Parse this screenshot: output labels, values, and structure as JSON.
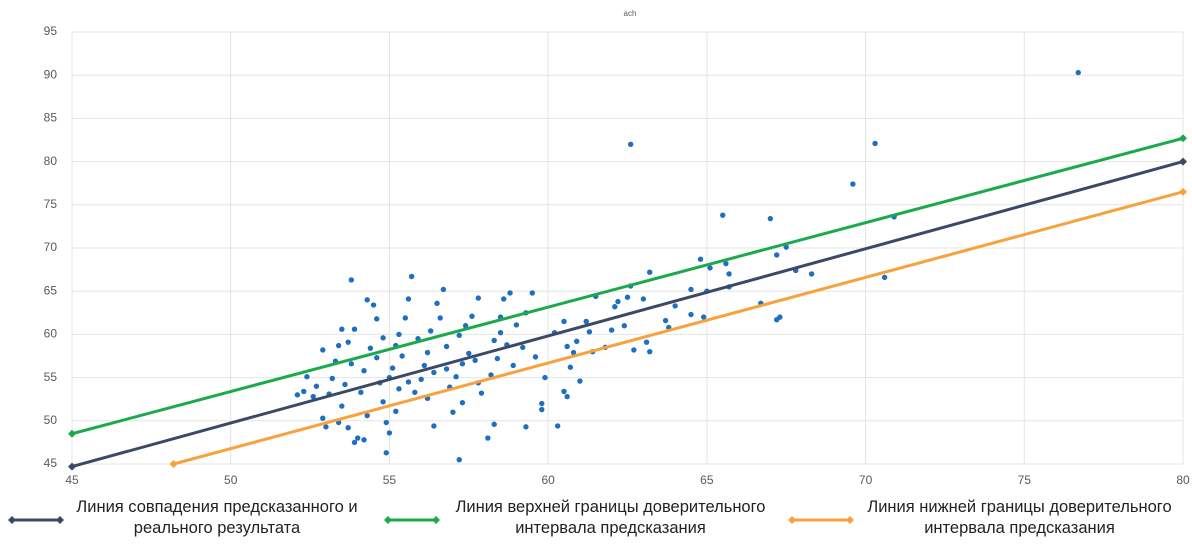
{
  "chart_data": {
    "type": "scatter",
    "title": "ach",
    "xlim": [
      45,
      80
    ],
    "xticks": [
      45,
      50,
      55,
      60,
      65,
      70,
      75,
      80
    ],
    "ylim": [
      45,
      95
    ],
    "yticks": [
      45,
      50,
      55,
      60,
      65,
      70,
      75,
      80,
      85,
      90,
      95
    ],
    "grid": true,
    "legend": "bottom",
    "series": [
      {
        "color": "#1f6fc0",
        "x": [
          76.7,
          70.3,
          62.6,
          69.6,
          70.9,
          65.5,
          67,
          70.6,
          67.5,
          67.2,
          67.3,
          67.2,
          66.7,
          68.3,
          67.8,
          65.7,
          65.6,
          65.1,
          64.8,
          65,
          65.7,
          64.5,
          64.9,
          64.5,
          64,
          63.7,
          63.8,
          63.2,
          63,
          62.6,
          62.5,
          62.2,
          62.1,
          62.4,
          62.7,
          63.1,
          63.2,
          62,
          61.5,
          61.3,
          61.4,
          61.8,
          61.2,
          60.9,
          60.6,
          60.8,
          61,
          60.7,
          60.5,
          60.6,
          60.2,
          60.5,
          60.3,
          59.8,
          59.3,
          59.8,
          59.2,
          59.6,
          59.5,
          59.3,
          59,
          58.8,
          58.6,
          58.5,
          58.3,
          58.4,
          58.5,
          58.2,
          58.1,
          58.3,
          57.8,
          57.8,
          57.6,
          57.4,
          57.2,
          57.5,
          57.3,
          57.1,
          57.2,
          57.3,
          57,
          56.9,
          56.8,
          56.6,
          56.7,
          56.5,
          56.3,
          56.2,
          56.1,
          56,
          56.2,
          56.4,
          55.8,
          55.7,
          55.6,
          55.5,
          55.3,
          55.2,
          55.4,
          55.1,
          55,
          55.3,
          55.2,
          55,
          54.9,
          54.9,
          54.7,
          54.6,
          54.8,
          54.6,
          54.5,
          54.3,
          54.4,
          54.2,
          54.1,
          54.3,
          54.2,
          54,
          53.8,
          53.9,
          53.7,
          53.8,
          53.6,
          53.5,
          53.7,
          53.9,
          53.5,
          53.4,
          53.3,
          53.2,
          53.1,
          53.4,
          52.9,
          52.7,
          52.6,
          52.4,
          52.3,
          52.1,
          52.9,
          53,
          56.8,
          57.7,
          55.9,
          58.9,
          59.9,
          56.4,
          55.6,
          54.8,
          57.9,
          58.7
        ],
        "values": [
          90.3,
          82.1,
          82,
          77.4,
          73.6,
          73.8,
          73.4,
          66.6,
          70.1,
          69.2,
          62,
          61.7,
          63.6,
          67,
          67.4,
          67,
          68.2,
          67.7,
          68.7,
          65,
          65.5,
          65.2,
          62,
          62.3,
          63.3,
          61.6,
          60.8,
          67.2,
          64.1,
          65.6,
          64.3,
          63.8,
          63.2,
          61,
          58.2,
          59.1,
          58,
          60.5,
          64.4,
          60.3,
          58,
          58.5,
          61.5,
          59.2,
          58.6,
          57.9,
          54.6,
          56.2,
          53.4,
          52.8,
          60.2,
          61.5,
          49.4,
          52,
          49.3,
          51.3,
          58.5,
          57.4,
          64.8,
          62.5,
          61.1,
          64.8,
          64.1,
          62,
          59.3,
          57.2,
          60.2,
          55.3,
          48,
          49.6,
          54.4,
          64.2,
          62.1,
          61,
          59.9,
          57.8,
          56.6,
          55.1,
          45.5,
          52.1,
          51,
          53.9,
          58.6,
          61.9,
          65.2,
          63.6,
          60.4,
          57.9,
          56.4,
          54.8,
          52.6,
          49.4,
          53.3,
          66.7,
          64.1,
          61.9,
          60,
          58.7,
          57.5,
          56.1,
          55,
          53.7,
          51.1,
          48.6,
          46.3,
          49.8,
          54.4,
          57.3,
          59.6,
          61.8,
          63.4,
          64,
          58.4,
          55.8,
          53.3,
          50.6,
          47.8,
          48,
          66.3,
          60.6,
          59.1,
          56.6,
          54.2,
          51.7,
          49.2,
          47.5,
          60.6,
          58.7,
          56.9,
          54.9,
          53.1,
          49.8,
          58.2,
          54,
          52.8,
          55.1,
          53.4,
          53,
          50.3,
          49.3,
          56,
          57,
          59.5,
          56.4,
          55,
          55.6,
          54.5,
          52.2,
          53.2,
          58.8
        ]
      },
      {
        "name": "Линия совпадения предсказанного и реального результата",
        "type": "line",
        "color": "#3b4866",
        "x": [
          45,
          80
        ],
        "values": [
          44.7,
          80
        ]
      },
      {
        "name": "Линия верхней границы доверительного интервала предсказания",
        "type": "line",
        "color": "#1aaa4a",
        "x": [
          45,
          80
        ],
        "values": [
          48.5,
          82.7
        ]
      },
      {
        "name": "Линия нижней границы доверительного интервала предсказания",
        "type": "line",
        "color": "#f7a23c",
        "x": [
          48.2,
          80
        ],
        "values": [
          45,
          76.5
        ]
      }
    ]
  }
}
